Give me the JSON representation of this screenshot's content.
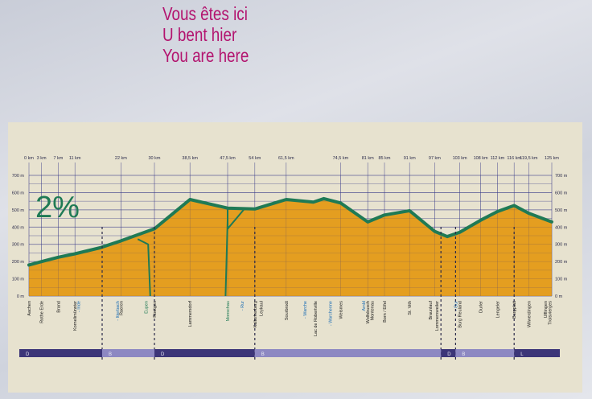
{
  "banner": {
    "fr": "Vous êtes ici",
    "nl": "U bent hier",
    "en": "You are here"
  },
  "colors": {
    "profile_fill": "#e49a16",
    "profile_line": "#1f7a55",
    "grid": "#3b3d8a",
    "banner": "#b3146f",
    "bar_dark": "#3c3578",
    "bar_light": "#8d88c2"
  },
  "chart_data": {
    "type": "area",
    "gradient_label": "2%",
    "y_ticks": [
      "0 m",
      "100 m",
      "200 m",
      "300 m",
      "400 m",
      "500 m",
      "600 m",
      "700 m"
    ],
    "ylim": [
      0,
      700
    ],
    "xlim": [
      0,
      125
    ],
    "km_labels": [
      {
        "km": 0,
        "label": "0 km"
      },
      {
        "km": 3,
        "label": "3 km"
      },
      {
        "km": 7,
        "label": "7 km"
      },
      {
        "km": 11,
        "label": "11 km"
      },
      {
        "km": 22,
        "label": "22 km"
      },
      {
        "km": 30,
        "label": "30 km"
      },
      {
        "km": 38.5,
        "label": "38,5 km"
      },
      {
        "km": 47.5,
        "label": "47,5 km"
      },
      {
        "km": 54,
        "label": "54 km"
      },
      {
        "km": 61.5,
        "label": "61,5 km"
      },
      {
        "km": 74.5,
        "label": "74,5 km"
      },
      {
        "km": 81,
        "label": "81 km"
      },
      {
        "km": 85,
        "label": "85 km"
      },
      {
        "km": 91,
        "label": "91 km"
      },
      {
        "km": 97,
        "label": "97 km"
      },
      {
        "km": 103,
        "label": "103 km"
      },
      {
        "km": 108,
        "label": "108 km"
      },
      {
        "km": 112,
        "label": "112 km"
      },
      {
        "km": 116,
        "label": "116 km"
      },
      {
        "km": 119.5,
        "label": "119,5 km"
      },
      {
        "km": 125,
        "label": "125 km"
      }
    ],
    "profile": [
      {
        "km": 0,
        "elev": 180
      },
      {
        "km": 3,
        "elev": 200
      },
      {
        "km": 7,
        "elev": 225
      },
      {
        "km": 11,
        "elev": 245
      },
      {
        "km": 17,
        "elev": 280
      },
      {
        "km": 22,
        "elev": 320
      },
      {
        "km": 30,
        "elev": 390
      },
      {
        "km": 38.5,
        "elev": 560
      },
      {
        "km": 47.5,
        "elev": 510
      },
      {
        "km": 54,
        "elev": 505
      },
      {
        "km": 61.5,
        "elev": 560
      },
      {
        "km": 68,
        "elev": 545
      },
      {
        "km": 70.5,
        "elev": 565
      },
      {
        "km": 74.5,
        "elev": 540
      },
      {
        "km": 81,
        "elev": 430
      },
      {
        "km": 85,
        "elev": 470
      },
      {
        "km": 91,
        "elev": 495
      },
      {
        "km": 97,
        "elev": 375
      },
      {
        "km": 100,
        "elev": 345
      },
      {
        "km": 103,
        "elev": 370
      },
      {
        "km": 108,
        "elev": 440
      },
      {
        "km": 112,
        "elev": 490
      },
      {
        "km": 116,
        "elev": 525
      },
      {
        "km": 119.5,
        "elev": 480
      },
      {
        "km": 125,
        "elev": 430
      }
    ],
    "spurs": [
      {
        "points": [
          {
            "km": 26,
            "elev": 330
          },
          {
            "km": 28.5,
            "elev": 300
          },
          {
            "km": 29,
            "elev": 0
          }
        ]
      },
      {
        "points": [
          {
            "km": 47.5,
            "elev": 510
          },
          {
            "km": 47.5,
            "elev": 390
          },
          {
            "km": 51.5,
            "elev": 505
          }
        ]
      },
      {
        "points": [
          {
            "km": 47.5,
            "elev": 440
          },
          {
            "km": 47,
            "elev": 0
          }
        ]
      }
    ],
    "places": [
      {
        "km": 0,
        "name": "Aachen",
        "color": "#1a1a1a"
      },
      {
        "km": 3,
        "name": "Rothe Erde",
        "color": "#1a1a1a"
      },
      {
        "km": 7,
        "name": "Brand",
        "color": "#1a1a1a"
      },
      {
        "km": 11,
        "name": "Kornelimünster",
        "color": "#1a1a1a"
      },
      {
        "km": 11.8,
        "name": "- Inde",
        "color": "#1f6fb5"
      },
      {
        "km": 21.2,
        "name": "- Itterbach",
        "color": "#1f6fb5"
      },
      {
        "km": 22,
        "name": "Raeren",
        "color": "#1a1a1a"
      },
      {
        "km": 28,
        "name": "Eupen",
        "color": "#1f7a55"
      },
      {
        "km": 30,
        "name": "Roetgen",
        "color": "#1a1a1a"
      },
      {
        "km": 38.5,
        "name": "Lammersdorf",
        "color": "#1a1a1a"
      },
      {
        "km": 47.5,
        "name": "Monschau",
        "color": "#1f7a55"
      },
      {
        "km": 51,
        "name": "- Rur",
        "color": "#1f6fb5"
      },
      {
        "km": 54,
        "name": "Kalterherberg",
        "color": "#1a1a1a"
      },
      {
        "km": 55.5,
        "name": "Leykaul",
        "color": "#1a1a1a"
      },
      {
        "km": 61.5,
        "name": "Sourbrodt",
        "color": "#1a1a1a"
      },
      {
        "km": 66,
        "name": "- Warche",
        "color": "#1f6fb5"
      },
      {
        "km": 68.5,
        "name": "Lac de Robertville",
        "color": "#1a1a1a"
      },
      {
        "km": 72,
        "name": "- Warchenne",
        "color": "#1f6fb5"
      },
      {
        "km": 74.5,
        "name": "Weismes",
        "color": "#1a1a1a"
      },
      {
        "km": 80,
        "name": "Ambl",
        "color": "#1f6fb5"
      },
      {
        "km": 81,
        "name": "Wolfsbusch",
        "color": "#1a1a1a"
      },
      {
        "km": 82,
        "name": "Montenau",
        "color": "#1a1a1a"
      },
      {
        "km": 85,
        "name": "Born / Eifel",
        "color": "#1a1a1a"
      },
      {
        "km": 91,
        "name": "St. Vith",
        "color": "#1a1a1a"
      },
      {
        "km": 96,
        "name": "Braunlauf",
        "color": "#1a1a1a"
      },
      {
        "km": 97.5,
        "name": "Lommersweiler",
        "color": "#1a1a1a"
      },
      {
        "km": 102,
        "name": "- Our",
        "color": "#1f6fb5"
      },
      {
        "km": 103,
        "name": "Burg Reuland",
        "color": "#1a1a1a"
      },
      {
        "km": 108,
        "name": "Durler",
        "color": "#1a1a1a"
      },
      {
        "km": 112,
        "name": "Lengeler",
        "color": "#1a1a1a"
      },
      {
        "km": 116,
        "name": "Burgplatt",
        "color": "#1a1a1a"
      },
      {
        "km": 119.5,
        "name": "Wilwerdingen",
        "color": "#1a1a1a"
      },
      {
        "km": 123.5,
        "name": "Ulflingen",
        "color": "#1a1a1a"
      },
      {
        "km": 124.5,
        "name": "Troisvierges",
        "color": "#1a1a1a"
      }
    ],
    "border_markers_km": [
      17.5,
      30,
      54,
      98.5,
      102,
      116
    ],
    "country_bars": [
      {
        "from_km": 0,
        "to_km": 17.5,
        "code": "D",
        "tone": "dark"
      },
      {
        "from_km": 17.5,
        "to_km": 30,
        "code": "B",
        "tone": "light"
      },
      {
        "from_km": 30,
        "to_km": 54,
        "code": "D",
        "tone": "dark"
      },
      {
        "from_km": 54,
        "to_km": 98.5,
        "code": "B",
        "tone": "light"
      },
      {
        "from_km": 98.5,
        "to_km": 102,
        "code": "D",
        "tone": "dark"
      },
      {
        "from_km": 102,
        "to_km": 116,
        "code": "B",
        "tone": "light"
      },
      {
        "from_km": 116,
        "to_km": 125,
        "code": "L",
        "tone": "dark"
      }
    ]
  }
}
